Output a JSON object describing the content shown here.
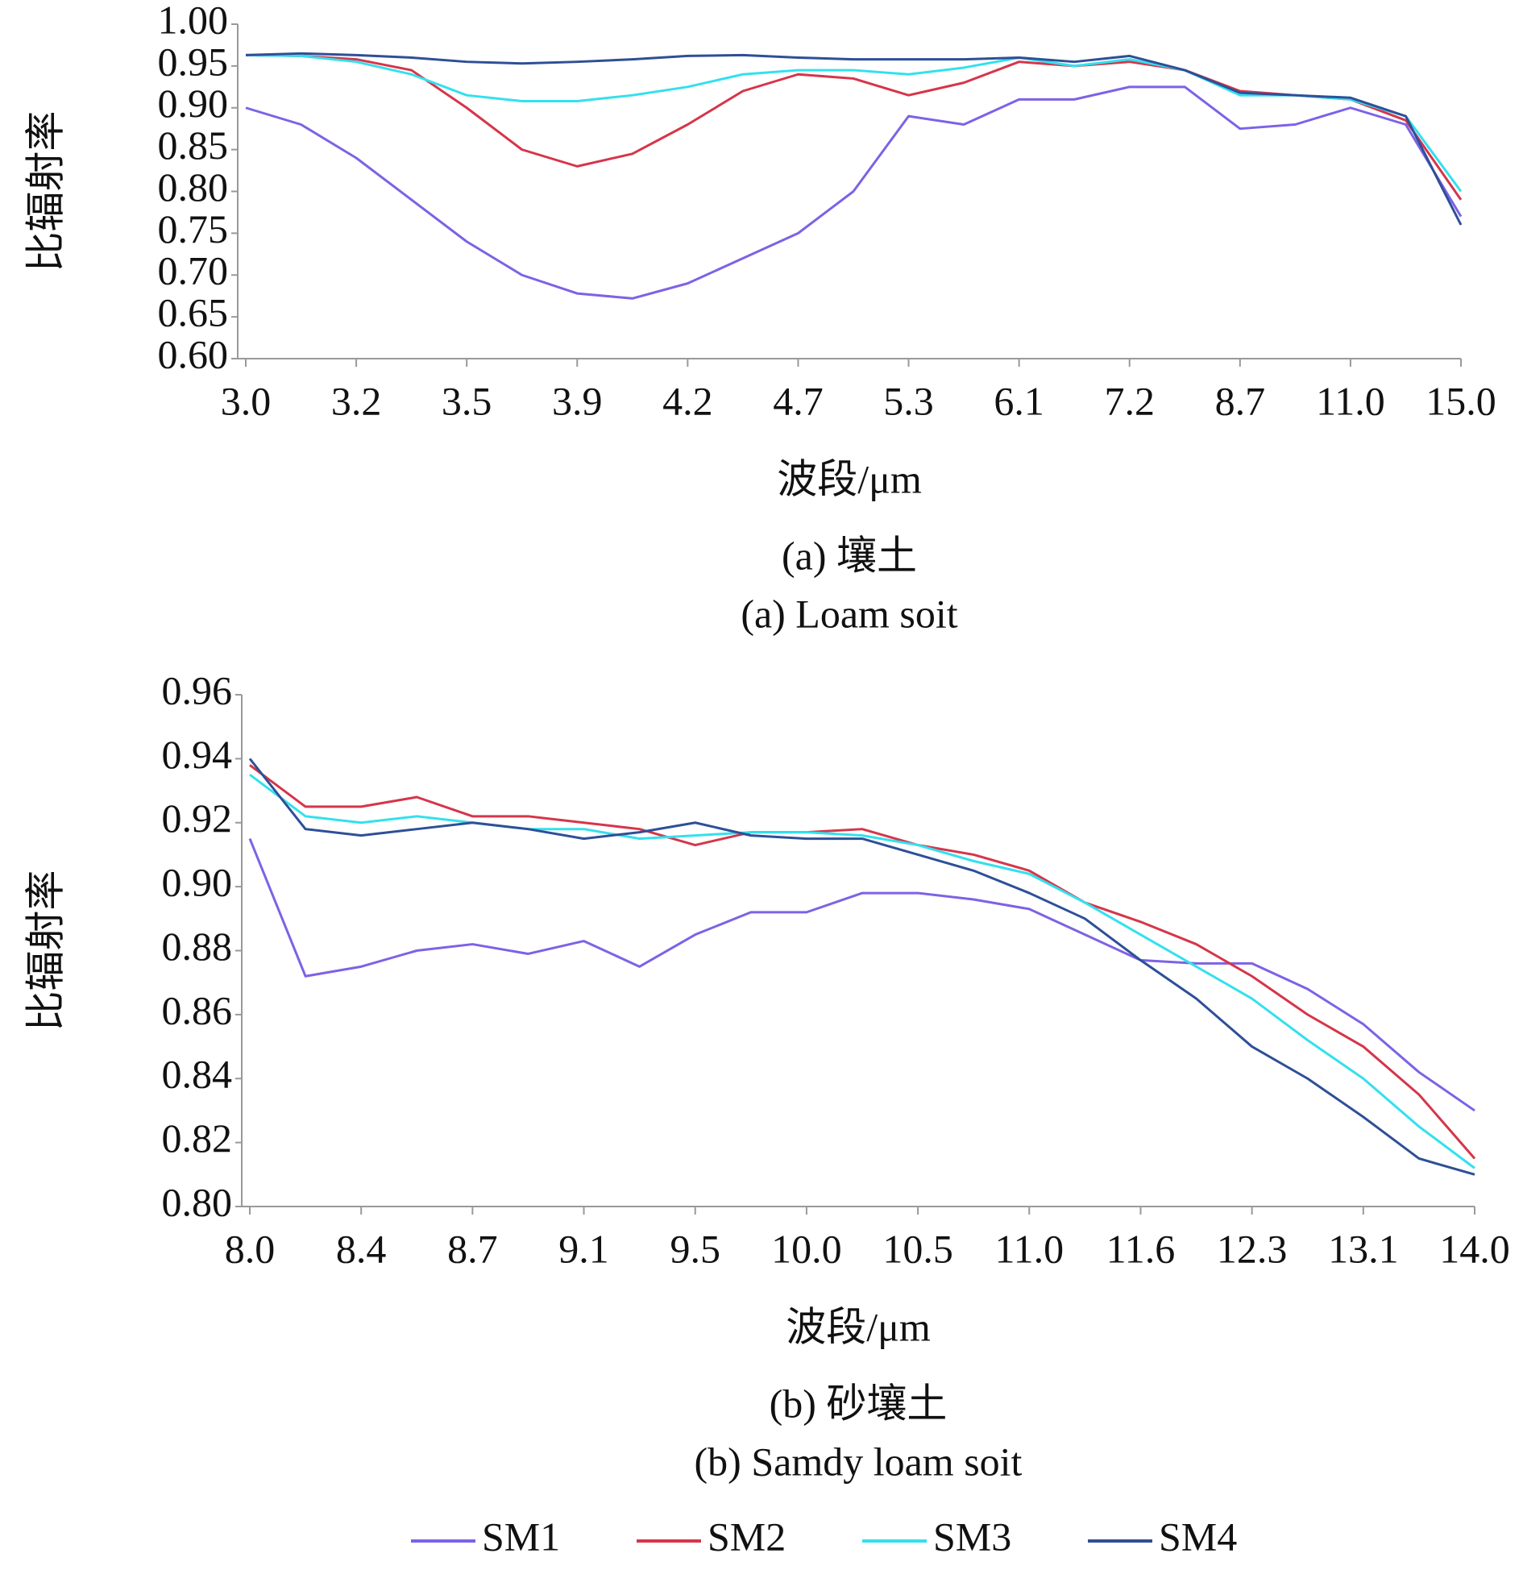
{
  "chart_data": [
    {
      "type": "line",
      "y_label": "比辐射率",
      "x_label": "波段/μm",
      "caption": [
        "(a) 壤土",
        "(a) Loam soit"
      ],
      "categories": [
        "3.0",
        null,
        "3.2",
        null,
        "3.5",
        null,
        "3.9",
        null,
        "4.2",
        null,
        "4.7",
        null,
        "5.3",
        null,
        "6.1",
        null,
        "7.2",
        null,
        "8.7",
        null,
        "11.0",
        null,
        "15.0"
      ],
      "ylim": [
        0.6,
        1.0
      ],
      "yticks": [
        {
          "value": 0.6,
          "label": "0.60"
        },
        0.65,
        {
          "value": 0.7,
          "label": "0.70"
        },
        0.75,
        {
          "value": 0.8,
          "label": "0.80"
        },
        0.85,
        {
          "value": 0.9,
          "label": "0.90"
        },
        0.95,
        {
          "value": 1.0,
          "label": "1.00"
        }
      ],
      "series": [
        {
          "name": "SM1",
          "color": "#7d62e6",
          "values": [
            0.9,
            0.88,
            0.84,
            0.79,
            0.74,
            0.7,
            0.678,
            0.672,
            0.69,
            0.72,
            0.75,
            0.8,
            0.89,
            0.88,
            0.91,
            0.91,
            0.925,
            0.925,
            0.875,
            0.88,
            0.9,
            0.88,
            0.77
          ]
        },
        {
          "name": "SM2",
          "color": "#d6354a",
          "values": [
            0.963,
            0.962,
            0.958,
            0.945,
            0.9,
            0.85,
            0.83,
            0.845,
            0.88,
            0.92,
            0.94,
            0.935,
            0.915,
            0.93,
            0.955,
            0.95,
            0.955,
            0.945,
            0.92,
            0.915,
            0.91,
            0.885,
            0.79
          ]
        },
        {
          "name": "SM3",
          "color": "#33e0ee",
          "values": [
            0.963,
            0.962,
            0.955,
            0.94,
            0.915,
            0.908,
            0.908,
            0.915,
            0.925,
            0.94,
            0.945,
            0.945,
            0.94,
            0.948,
            0.96,
            0.95,
            0.958,
            0.945,
            0.915,
            0.915,
            0.91,
            0.89,
            0.8
          ]
        },
        {
          "name": "SM4",
          "color": "#2e4f97",
          "values": [
            0.963,
            0.965,
            0.963,
            0.96,
            0.955,
            0.953,
            0.955,
            0.958,
            0.962,
            0.963,
            0.96,
            0.958,
            0.958,
            0.958,
            0.96,
            0.955,
            0.962,
            0.945,
            0.918,
            0.915,
            0.912,
            0.89,
            0.76
          ]
        }
      ]
    },
    {
      "type": "line",
      "y_label": "比辐射率",
      "x_label": "波段/μm",
      "caption": [
        "(b) 砂壤土",
        "(b) Samdy loam soit"
      ],
      "categories": [
        "8.0",
        null,
        "8.4",
        null,
        "8.7",
        null,
        "9.1",
        null,
        "9.5",
        null,
        "10.0",
        null,
        "10.5",
        null,
        "11.0",
        null,
        "11.6",
        null,
        "12.3",
        null,
        "13.1",
        null,
        "14.0"
      ],
      "ylim": [
        0.8,
        0.96
      ],
      "yticks": [
        {
          "value": 0.8,
          "label": "0.80"
        },
        0.82,
        0.84,
        0.86,
        0.88,
        {
          "value": 0.9,
          "label": "0.90"
        },
        0.92,
        0.94,
        0.96
      ],
      "series": [
        {
          "name": "SM1",
          "color": "#7d62e6",
          "values": [
            0.915,
            0.872,
            0.875,
            0.88,
            0.882,
            0.879,
            0.883,
            0.875,
            0.885,
            0.892,
            0.892,
            0.898,
            0.898,
            0.896,
            0.893,
            0.885,
            0.877,
            0.876,
            0.876,
            0.868,
            0.857,
            0.842,
            0.83
          ]
        },
        {
          "name": "SM2",
          "color": "#d6354a",
          "values": [
            0.938,
            0.925,
            0.925,
            0.928,
            0.922,
            0.922,
            0.92,
            0.918,
            0.913,
            0.917,
            0.917,
            0.918,
            0.913,
            0.91,
            0.905,
            0.895,
            0.889,
            0.882,
            0.872,
            0.86,
            0.85,
            0.835,
            0.815
          ]
        },
        {
          "name": "SM3",
          "color": "#33e0ee",
          "values": [
            0.935,
            0.922,
            0.92,
            0.922,
            0.92,
            0.918,
            0.918,
            0.915,
            0.916,
            0.917,
            0.917,
            0.916,
            0.913,
            0.908,
            0.904,
            0.895,
            0.885,
            0.875,
            0.865,
            0.852,
            0.84,
            0.825,
            0.812
          ]
        },
        {
          "name": "SM4",
          "color": "#2e4f97",
          "values": [
            0.94,
            0.918,
            0.916,
            0.918,
            0.92,
            0.918,
            0.915,
            0.917,
            0.92,
            0.916,
            0.915,
            0.915,
            0.91,
            0.905,
            0.898,
            0.89,
            0.877,
            0.865,
            0.85,
            0.84,
            0.828,
            0.815,
            0.81
          ]
        }
      ]
    }
  ]
}
